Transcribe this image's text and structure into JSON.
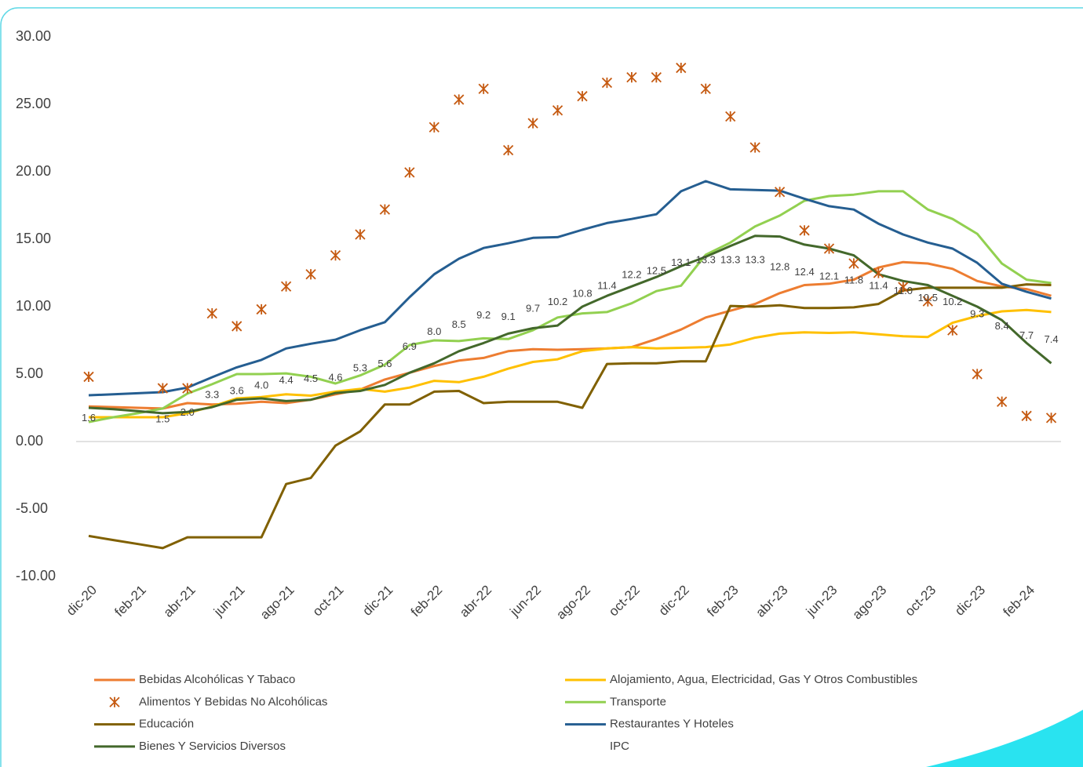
{
  "chart_data": {
    "type": "line",
    "categories": [
      "dic-20",
      null,
      "feb-21",
      null,
      "abr-21",
      null,
      "jun-21",
      null,
      "ago-21",
      null,
      "oct-21",
      null,
      "dic-21",
      null,
      "feb-22",
      null,
      "abr-22",
      null,
      "jun-22",
      null,
      "ago-22",
      null,
      "oct-22",
      null,
      "dic-22",
      null,
      "feb-23",
      null,
      "abr-23",
      null,
      "jun-23",
      null,
      "ago-23",
      null,
      "oct-23",
      null,
      "dic-23",
      null,
      "feb-24",
      null
    ],
    "ylim": [
      -10,
      30
    ],
    "yticks": [
      {
        "value": 30,
        "label": "30.00"
      },
      {
        "value": 25,
        "label": "25.00"
      },
      {
        "value": 20,
        "label": "20.00"
      },
      {
        "value": 15,
        "label": "15.00"
      },
      {
        "value": 10,
        "label": "10.00"
      },
      {
        "value": 5,
        "label": "5.00"
      },
      {
        "value": 0,
        "label": "0.00"
      },
      {
        "value": -5,
        "label": "-5.00"
      },
      {
        "value": -10,
        "label": "-10.00"
      }
    ],
    "grid": false,
    "legend": "bottom",
    "series": [
      {
        "name": "Bebidas Alcohólicas Y Tabaco",
        "type": "line",
        "color": "#ed7d31",
        "values": [
          2.6,
          2.55,
          2.5,
          2.45,
          2.85,
          2.75,
          2.8,
          2.95,
          2.85,
          3.1,
          3.5,
          3.85,
          4.6,
          5.1,
          5.6,
          6.0,
          6.2,
          6.7,
          6.85,
          6.8,
          6.85,
          6.9,
          7.0,
          7.6,
          8.3,
          9.2,
          9.7,
          10.2,
          11.0,
          11.6,
          11.7,
          12.0,
          12.9,
          13.3,
          13.2,
          12.8,
          11.9,
          11.5,
          11.3,
          10.8
        ]
      },
      {
        "name": "Alojamiento, Agua, Electricidad, Gas Y Otros Combustibles",
        "type": "line",
        "color": "#ffc000",
        "values": [
          1.8,
          1.8,
          1.8,
          1.8,
          2.1,
          2.6,
          3.2,
          3.3,
          3.5,
          3.4,
          3.7,
          3.9,
          3.7,
          4.0,
          4.5,
          4.4,
          4.8,
          5.4,
          5.9,
          6.1,
          6.7,
          6.9,
          7.0,
          6.9,
          6.95,
          7.0,
          7.2,
          7.7,
          8.0,
          8.1,
          8.05,
          8.1,
          7.95,
          7.8,
          7.75,
          8.8,
          9.3,
          9.65,
          9.75,
          9.6
        ]
      },
      {
        "name": "Alimentos Y Bebidas No Alcohólicas",
        "type": "scatter",
        "color": "#c55a11",
        "values": [
          4.8,
          null,
          null,
          3.95,
          3.95,
          9.5,
          8.55,
          9.8,
          11.5,
          12.4,
          13.8,
          15.35,
          17.2,
          19.95,
          23.3,
          25.35,
          26.15,
          21.6,
          23.6,
          24.55,
          25.6,
          26.6,
          27.0,
          27.0,
          27.7,
          26.15,
          24.1,
          21.8,
          18.5,
          15.65,
          14.3,
          13.2,
          12.5,
          11.45,
          10.4,
          8.25,
          5.0,
          2.95,
          1.9,
          1.75
        ]
      },
      {
        "name": "Transporte",
        "type": "line",
        "color": "#92d050",
        "values": [
          1.45,
          1.8,
          2.1,
          2.45,
          3.55,
          4.25,
          5.0,
          5.0,
          5.05,
          4.8,
          4.3,
          4.9,
          5.7,
          7.15,
          7.5,
          7.45,
          7.65,
          7.6,
          8.25,
          9.2,
          9.5,
          9.6,
          10.25,
          11.15,
          11.55,
          13.85,
          14.75,
          15.95,
          16.75,
          17.85,
          18.2,
          18.3,
          18.55,
          18.55,
          17.2,
          16.5,
          15.4,
          13.2,
          12.0,
          11.75
        ]
      },
      {
        "name": "Educación",
        "type": "line",
        "color": "#806000",
        "values": [
          -7.0,
          -7.3,
          -7.6,
          -7.9,
          -7.1,
          -7.1,
          -7.1,
          -7.1,
          -3.15,
          -2.7,
          -0.3,
          0.75,
          2.75,
          2.75,
          3.7,
          3.75,
          2.85,
          2.95,
          2.95,
          2.95,
          2.5,
          5.75,
          5.8,
          5.8,
          5.95,
          5.95,
          10.05,
          10.0,
          10.1,
          9.9,
          9.9,
          9.95,
          10.2,
          11.2,
          11.4,
          11.4,
          11.4,
          11.4,
          11.65,
          11.6
        ]
      },
      {
        "name": "Restaurantes Y Hoteles",
        "type": "line",
        "color": "#255e91",
        "values": [
          3.43,
          3.5,
          3.58,
          3.66,
          4.0,
          4.77,
          5.5,
          6.05,
          6.9,
          7.25,
          7.55,
          8.25,
          8.85,
          10.7,
          12.4,
          13.55,
          14.35,
          14.7,
          15.1,
          15.15,
          15.7,
          16.2,
          16.5,
          16.85,
          18.55,
          19.3,
          18.7,
          18.65,
          18.6,
          18.0,
          17.45,
          17.2,
          16.15,
          15.35,
          14.75,
          14.3,
          13.25,
          11.7,
          11.1,
          10.6
        ]
      },
      {
        "name": "Bienes Y Servicios Diversos",
        "type": "line",
        "color": "#43682b",
        "values": [
          2.5,
          2.4,
          2.25,
          2.1,
          2.2,
          2.55,
          3.1,
          3.2,
          3.0,
          3.1,
          3.6,
          3.75,
          4.2,
          5.1,
          5.8,
          6.7,
          7.3,
          8.0,
          8.4,
          8.6,
          10.0,
          10.8,
          11.5,
          12.2,
          13.0,
          13.7,
          14.5,
          15.25,
          15.2,
          14.6,
          14.3,
          13.8,
          12.4,
          11.9,
          11.6,
          10.8,
          10.0,
          9.0,
          7.3,
          5.8
        ]
      },
      {
        "name": "IPC",
        "type": "text",
        "color": "#404040",
        "values": [
          1.6,
          null,
          null,
          1.5,
          2.0,
          3.3,
          3.6,
          4.0,
          4.4,
          4.5,
          4.6,
          5.3,
          5.6,
          6.9,
          8.0,
          8.5,
          9.2,
          9.1,
          9.7,
          10.2,
          10.8,
          11.4,
          12.2,
          12.5,
          13.1,
          13.3,
          13.3,
          13.3,
          12.8,
          12.4,
          12.1,
          11.8,
          11.4,
          11.0,
          10.5,
          10.2,
          9.3,
          8.4,
          7.7,
          7.4
        ],
        "value_labels": [
          "1.6",
          null,
          null,
          "1.5",
          "2.0",
          "3.3",
          "3.6",
          "4.0",
          "4.4",
          "4.5",
          "4.6",
          "5.3",
          "5.6",
          "6.9",
          "8.0",
          "8.5",
          "9.2",
          "9.1",
          "9.7",
          "10.2",
          "10.8",
          "11.4",
          "12.2",
          "12.5",
          "13.1",
          "13.3",
          "13.3",
          "13.3",
          "12.8",
          "12.4",
          "12.1",
          "11.8",
          "11.4",
          "11.0",
          "10.5",
          "10.2",
          "9.3",
          "8.4",
          "7.7",
          "7.4"
        ]
      }
    ]
  }
}
